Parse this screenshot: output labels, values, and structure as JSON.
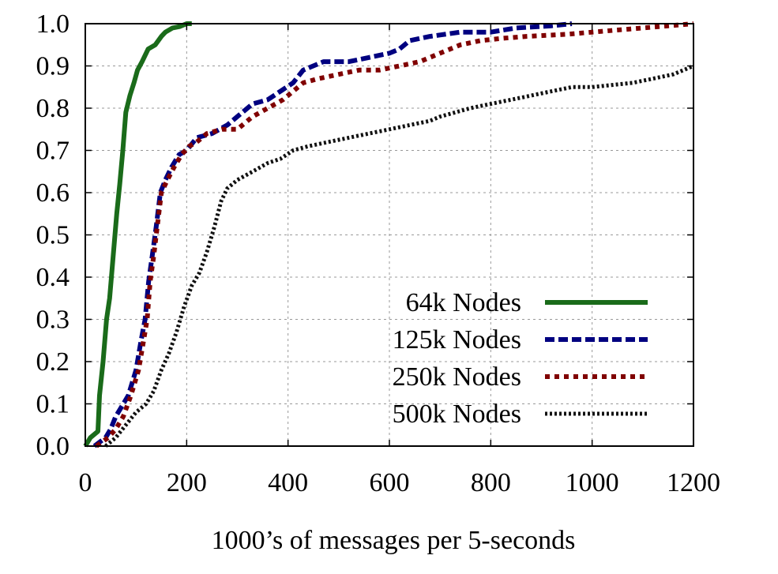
{
  "chart_data": {
    "type": "line",
    "title": "",
    "xlabel": "1000’s of messages per 5-seconds",
    "ylabel": "",
    "xlim": [
      0,
      1200
    ],
    "ylim": [
      0,
      1.0
    ],
    "xticks": [
      0,
      200,
      400,
      600,
      800,
      1000,
      1200
    ],
    "xtick_labels": [
      "0",
      "200",
      "400",
      "600",
      "800",
      "1000",
      "1200"
    ],
    "yticks": [
      0,
      0.1,
      0.2,
      0.3,
      0.4,
      0.5,
      0.6,
      0.7,
      0.8,
      0.9,
      1.0
    ],
    "ytick_labels": [
      "0.0",
      "0.1",
      "0.2",
      "0.3",
      "0.4",
      "0.5",
      "0.6",
      "0.7",
      "0.8",
      "0.9",
      "1.0"
    ],
    "grid": true,
    "legend_position": "bottom-right",
    "series": [
      {
        "name": "64k Nodes",
        "color": "#1a6b1a",
        "style": "solid",
        "points": [
          [
            0,
            0
          ],
          [
            10,
            0.02
          ],
          [
            25,
            0.035
          ],
          [
            28,
            0.12
          ],
          [
            35,
            0.2
          ],
          [
            42,
            0.3
          ],
          [
            48,
            0.35
          ],
          [
            55,
            0.45
          ],
          [
            62,
            0.55
          ],
          [
            68,
            0.62
          ],
          [
            74,
            0.7
          ],
          [
            80,
            0.79
          ],
          [
            88,
            0.83
          ],
          [
            96,
            0.86
          ],
          [
            103,
            0.89
          ],
          [
            112,
            0.91
          ],
          [
            124,
            0.94
          ],
          [
            138,
            0.95
          ],
          [
            150,
            0.97
          ],
          [
            158,
            0.98
          ],
          [
            172,
            0.99
          ],
          [
            186,
            0.993
          ],
          [
            200,
            1.0
          ],
          [
            210,
            1.0
          ]
        ]
      },
      {
        "name": "125k Nodes",
        "color": "#000080",
        "style": "dashed",
        "points": [
          [
            18,
            0
          ],
          [
            40,
            0.02
          ],
          [
            50,
            0.04
          ],
          [
            60,
            0.07
          ],
          [
            70,
            0.09
          ],
          [
            85,
            0.12
          ],
          [
            100,
            0.18
          ],
          [
            110,
            0.25
          ],
          [
            118,
            0.3
          ],
          [
            125,
            0.39
          ],
          [
            132,
            0.45
          ],
          [
            140,
            0.52
          ],
          [
            148,
            0.6
          ],
          [
            158,
            0.63
          ],
          [
            170,
            0.66
          ],
          [
            185,
            0.69
          ],
          [
            200,
            0.7
          ],
          [
            220,
            0.73
          ],
          [
            250,
            0.74
          ],
          [
            280,
            0.76
          ],
          [
            310,
            0.79
          ],
          [
            330,
            0.81
          ],
          [
            360,
            0.82
          ],
          [
            385,
            0.84
          ],
          [
            410,
            0.86
          ],
          [
            430,
            0.89
          ],
          [
            470,
            0.91
          ],
          [
            520,
            0.91
          ],
          [
            560,
            0.92
          ],
          [
            600,
            0.93
          ],
          [
            620,
            0.94
          ],
          [
            640,
            0.96
          ],
          [
            680,
            0.97
          ],
          [
            740,
            0.98
          ],
          [
            800,
            0.98
          ],
          [
            850,
            0.99
          ],
          [
            920,
            0.995
          ],
          [
            960,
            1.0
          ]
        ]
      },
      {
        "name": "250k Nodes",
        "color": "#800000",
        "style": "dotted",
        "points": [
          [
            22,
            0
          ],
          [
            45,
            0.02
          ],
          [
            60,
            0.04
          ],
          [
            75,
            0.07
          ],
          [
            90,
            0.12
          ],
          [
            105,
            0.18
          ],
          [
            115,
            0.25
          ],
          [
            122,
            0.3
          ],
          [
            128,
            0.39
          ],
          [
            135,
            0.45
          ],
          [
            142,
            0.52
          ],
          [
            150,
            0.6
          ],
          [
            162,
            0.63
          ],
          [
            175,
            0.66
          ],
          [
            190,
            0.69
          ],
          [
            205,
            0.71
          ],
          [
            220,
            0.72
          ],
          [
            240,
            0.74
          ],
          [
            270,
            0.75
          ],
          [
            300,
            0.75
          ],
          [
            330,
            0.78
          ],
          [
            360,
            0.8
          ],
          [
            390,
            0.82
          ],
          [
            410,
            0.84
          ],
          [
            430,
            0.86
          ],
          [
            460,
            0.87
          ],
          [
            500,
            0.88
          ],
          [
            540,
            0.89
          ],
          [
            580,
            0.89
          ],
          [
            620,
            0.9
          ],
          [
            660,
            0.91
          ],
          [
            700,
            0.93
          ],
          [
            740,
            0.95
          ],
          [
            780,
            0.96
          ],
          [
            820,
            0.965
          ],
          [
            870,
            0.97
          ],
          [
            950,
            0.975
          ],
          [
            1000,
            0.98
          ],
          [
            1050,
            0.985
          ],
          [
            1100,
            0.99
          ],
          [
            1150,
            0.995
          ],
          [
            1200,
            1.0
          ]
        ]
      },
      {
        "name": "500k Nodes",
        "color": "#111111",
        "style": "densely-dotted",
        "points": [
          [
            40,
            0
          ],
          [
            60,
            0.02
          ],
          [
            80,
            0.05
          ],
          [
            100,
            0.08
          ],
          [
            120,
            0.1
          ],
          [
            135,
            0.13
          ],
          [
            150,
            0.18
          ],
          [
            165,
            0.22
          ],
          [
            180,
            0.27
          ],
          [
            195,
            0.33
          ],
          [
            210,
            0.38
          ],
          [
            225,
            0.41
          ],
          [
            240,
            0.46
          ],
          [
            255,
            0.52
          ],
          [
            268,
            0.58
          ],
          [
            280,
            0.61
          ],
          [
            300,
            0.63
          ],
          [
            330,
            0.65
          ],
          [
            360,
            0.67
          ],
          [
            385,
            0.68
          ],
          [
            410,
            0.7
          ],
          [
            440,
            0.71
          ],
          [
            480,
            0.72
          ],
          [
            520,
            0.73
          ],
          [
            560,
            0.74
          ],
          [
            600,
            0.75
          ],
          [
            640,
            0.76
          ],
          [
            680,
            0.77
          ],
          [
            700,
            0.78
          ],
          [
            730,
            0.79
          ],
          [
            760,
            0.8
          ],
          [
            800,
            0.81
          ],
          [
            840,
            0.82
          ],
          [
            880,
            0.83
          ],
          [
            920,
            0.84
          ],
          [
            960,
            0.85
          ],
          [
            1000,
            0.85
          ],
          [
            1040,
            0.855
          ],
          [
            1080,
            0.86
          ],
          [
            1120,
            0.87
          ],
          [
            1160,
            0.88
          ],
          [
            1200,
            0.9
          ]
        ]
      }
    ]
  }
}
